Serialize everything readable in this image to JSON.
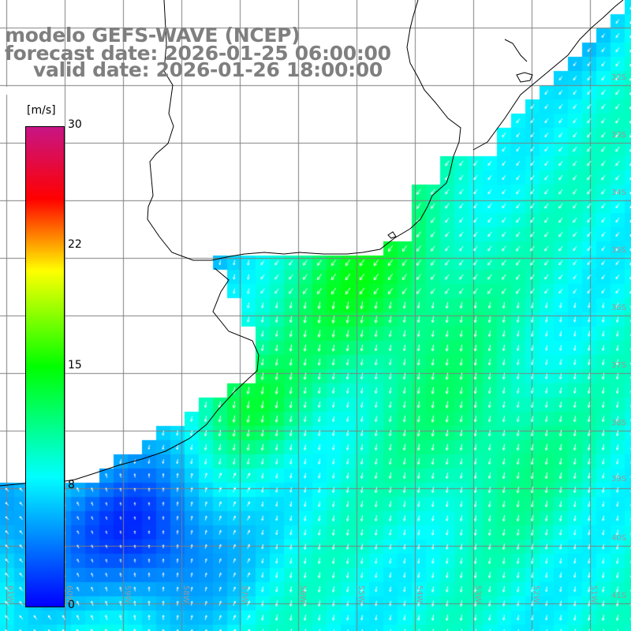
{
  "titles": {
    "line1": "modelo GEFS-WAVE (NCEP)",
    "line2": "forecast date: 2026-01-25 06:00:00",
    "line3": "valid date: 2026-01-26 18:00:00"
  },
  "colorbar": {
    "unit": "[m/s]",
    "ticks": [
      "30",
      "22",
      "15",
      "8",
      "0"
    ],
    "range": [
      0,
      30
    ],
    "colors": [
      "#0000ff",
      "#00ffff",
      "#00ff00",
      "#ffff00",
      "#ff0000",
      "#c71585"
    ]
  },
  "latitude_labels": [
    "32S",
    "33S",
    "34S",
    "35S",
    "36S",
    "37S",
    "38S",
    "39S",
    "40S",
    "41S"
  ],
  "longitude_labels": [
    "61W",
    "60W",
    "59W",
    "58W",
    "57W",
    "56W",
    "55W",
    "54W",
    "53W",
    "52W",
    "51W"
  ],
  "colors": {
    "land": "#ffffff",
    "coastline": "#000000",
    "grid": "#7f7f7f",
    "title_text": "#7f7f7f",
    "arrows": "#ffffff"
  },
  "variable": "wind speed"
}
